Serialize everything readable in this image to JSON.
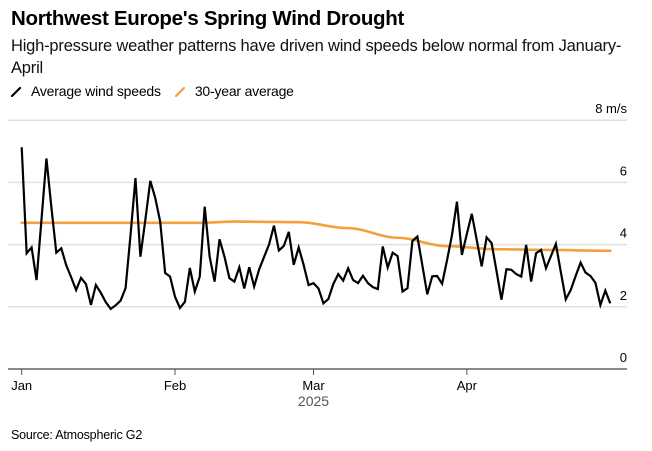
{
  "title": "Northwest Europe's Spring Wind Drought",
  "subtitle": "High-pressure weather patterns have driven wind speeds below normal from January-April",
  "source": "Source: Atmospheric G2",
  "colors": {
    "wind": "#000000",
    "average": "#f5a03a",
    "grid": "#e0e0e0",
    "axis": "#8a8a8a"
  },
  "chart_data": {
    "type": "line",
    "title": "Northwest Europe's Spring Wind Drought",
    "xlabel": "2025",
    "ylabel": "m/s",
    "x_range": [
      "2025-01-01",
      "2025-04-30"
    ],
    "ylim": [
      0,
      8
    ],
    "grid": true,
    "legend_position": "top-left",
    "y_ticks": [
      {
        "value": 8,
        "label": "8 m/s"
      },
      {
        "value": 6,
        "label": "6"
      },
      {
        "value": 4,
        "label": "4"
      },
      {
        "value": 2,
        "label": "2"
      },
      {
        "value": 0,
        "label": "0"
      }
    ],
    "x_ticks": [
      {
        "day": 0,
        "label": "Jan"
      },
      {
        "day": 31,
        "label": "Feb"
      },
      {
        "day": 59,
        "label": "Mar"
      },
      {
        "day": 90,
        "label": "Apr"
      }
    ],
    "x_year_label": "2025",
    "series": [
      {
        "name": "Average wind speeds",
        "color": "#000000",
        "start": "2025-01-01",
        "step": "1 day",
        "values": [
          7.13,
          3.72,
          3.91,
          2.86,
          4.8,
          6.77,
          5.2,
          3.74,
          3.88,
          3.34,
          2.95,
          2.54,
          2.93,
          2.73,
          2.06,
          2.7,
          2.45,
          2.15,
          1.93,
          2.05,
          2.2,
          2.6,
          4.3,
          6.14,
          3.61,
          4.8,
          6.05,
          5.5,
          4.74,
          3.09,
          2.97,
          2.32,
          1.96,
          2.16,
          3.25,
          2.49,
          2.97,
          5.22,
          3.61,
          2.81,
          4.17,
          3.61,
          2.92,
          2.81,
          3.27,
          2.59,
          3.27,
          2.65,
          3.2,
          3.6,
          4.0,
          4.61,
          3.81,
          3.96,
          4.41,
          3.35,
          3.91,
          3.35,
          2.7,
          2.76,
          2.59,
          2.11,
          2.25,
          2.73,
          3.05,
          2.84,
          3.24,
          2.86,
          2.76,
          3.0,
          2.76,
          2.63,
          2.57,
          3.94,
          3.26,
          3.74,
          3.63,
          2.49,
          2.6,
          4.12,
          4.26,
          3.34,
          2.4,
          2.98,
          2.99,
          2.74,
          3.5,
          4.31,
          5.38,
          3.67,
          4.34,
          4.99,
          4.15,
          3.3,
          4.23,
          4.05,
          3.15,
          2.23,
          3.21,
          3.19,
          3.05,
          2.97,
          3.99,
          2.81,
          3.72,
          3.83,
          3.24,
          3.63,
          4.02,
          3.12,
          2.24,
          2.54,
          2.99,
          3.42,
          3.1,
          2.99,
          2.77,
          2.06,
          2.52,
          2.11
        ]
      },
      {
        "name": "30-year average",
        "color": "#f5a03a",
        "start": "2025-01-01",
        "step": "1 day",
        "keypoints": [
          {
            "day": 0,
            "value": 4.7
          },
          {
            "day": 20,
            "value": 4.7
          },
          {
            "day": 36,
            "value": 4.7
          },
          {
            "day": 43,
            "value": 4.74
          },
          {
            "day": 50,
            "value": 4.73
          },
          {
            "day": 56,
            "value": 4.72
          },
          {
            "day": 66,
            "value": 4.53
          },
          {
            "day": 76,
            "value": 4.22
          },
          {
            "day": 86,
            "value": 3.95
          },
          {
            "day": 96,
            "value": 3.85
          },
          {
            "day": 106,
            "value": 3.83
          },
          {
            "day": 119,
            "value": 3.8
          }
        ]
      }
    ]
  },
  "legend": [
    {
      "label": "Average wind speeds",
      "color": "#000000"
    },
    {
      "label": "30-year average",
      "color": "#f5a03a"
    }
  ]
}
